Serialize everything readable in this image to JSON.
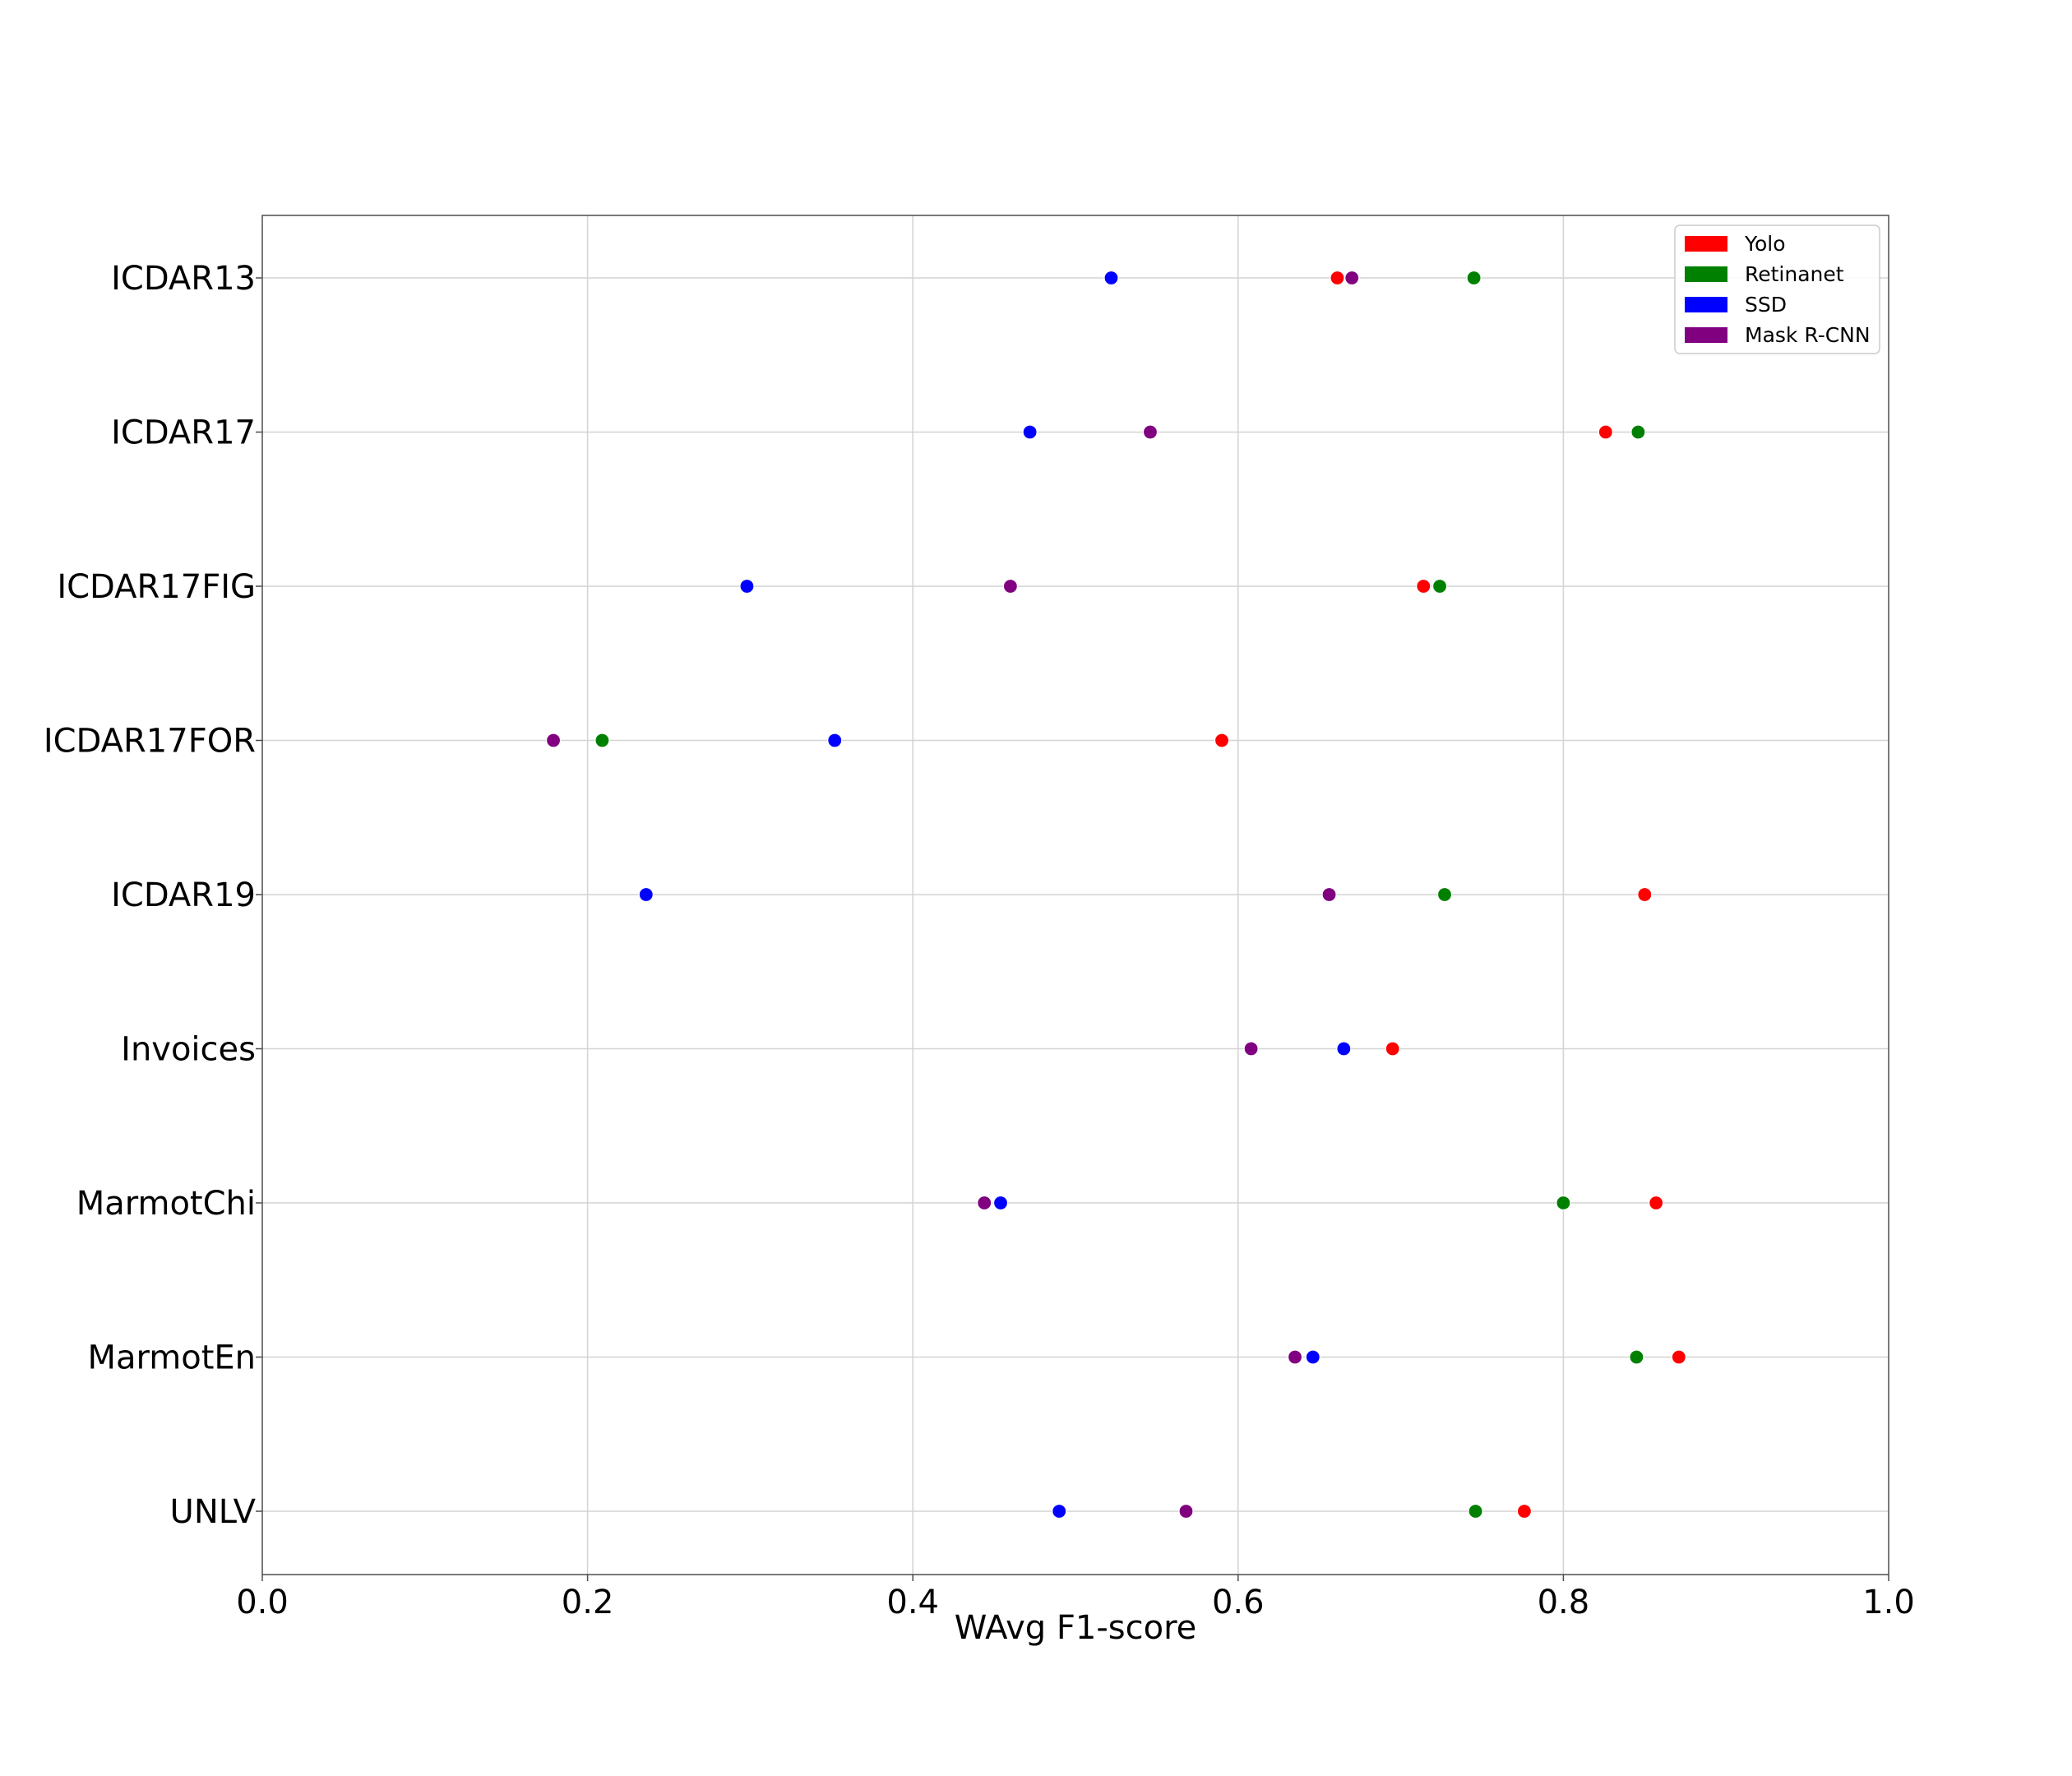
{
  "chart_data": {
    "type": "scatter",
    "xlabel": "WAvg F1-score",
    "ylabel": "",
    "xlim": [
      0.0,
      1.0
    ],
    "xticks": [
      "0.0",
      "0.2",
      "0.4",
      "0.6",
      "0.8",
      "1.0"
    ],
    "categories": [
      "ICDAR13",
      "ICDAR17",
      "ICDAR17FIG",
      "ICDAR17FOR",
      "ICDAR19",
      "Invoices",
      "MarmotChi",
      "MarmotEn",
      "UNLV"
    ],
    "grid": true,
    "legend_position": "top-right",
    "series": [
      {
        "name": "Yolo",
        "color": "#ff0000",
        "values": [
          0.661,
          0.826,
          0.714,
          0.59,
          0.85,
          0.695,
          0.857,
          0.871,
          0.776
        ]
      },
      {
        "name": "Retinanet",
        "color": "#008000",
        "values": [
          0.745,
          0.846,
          0.724,
          0.209,
          0.727,
          null,
          0.8,
          0.845,
          0.746
        ]
      },
      {
        "name": "SSD",
        "color": "#0000ff",
        "values": [
          0.522,
          0.472,
          0.298,
          0.352,
          0.236,
          0.665,
          0.454,
          0.646,
          0.49
        ]
      },
      {
        "name": "Mask R-CNN",
        "color": "#800080",
        "values": [
          0.67,
          0.546,
          0.46,
          0.179,
          0.656,
          0.608,
          0.444,
          0.635,
          0.568
        ]
      }
    ]
  }
}
